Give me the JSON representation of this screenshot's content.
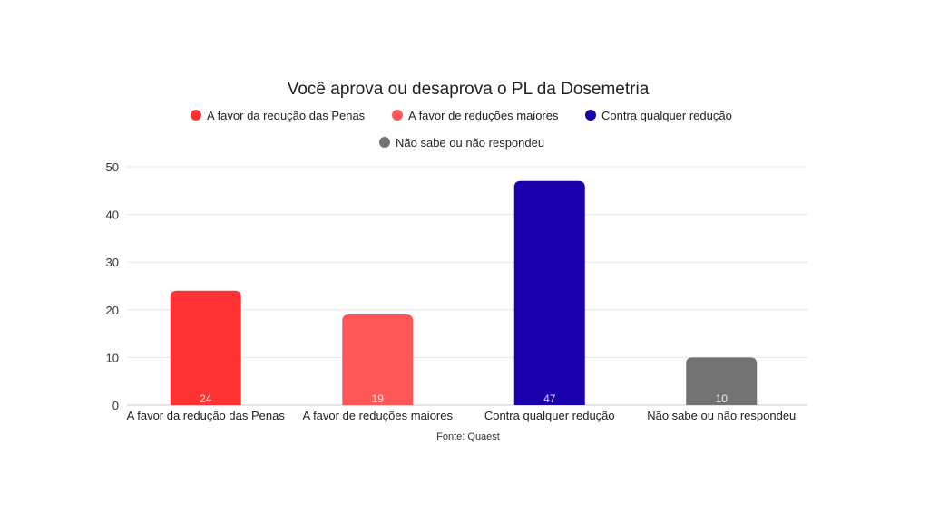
{
  "chart_data": {
    "type": "bar",
    "title": "Você aprova ou desaprova o PL da Dosemetria",
    "categories": [
      "A favor da redução das Penas",
      "A favor de reduções maiores",
      "Contra qualquer redução",
      "Não sabe ou não respondeu"
    ],
    "values": [
      24,
      19,
      47,
      10
    ],
    "colors": [
      "#ff3333",
      "#ff5757",
      "#1a00aa",
      "#737373"
    ],
    "legend": [
      "A favor da redução das Penas",
      "A favor de reduções maiores",
      "Contra qualquer redução",
      "Não sabe ou não respondeu"
    ],
    "legend_position": "top",
    "yticks": [
      0,
      10,
      20,
      30,
      40,
      50
    ],
    "ylim": [
      0,
      50
    ],
    "grid": true,
    "xlabel": "",
    "ylabel": "",
    "source": "Fonte: Quaest"
  }
}
